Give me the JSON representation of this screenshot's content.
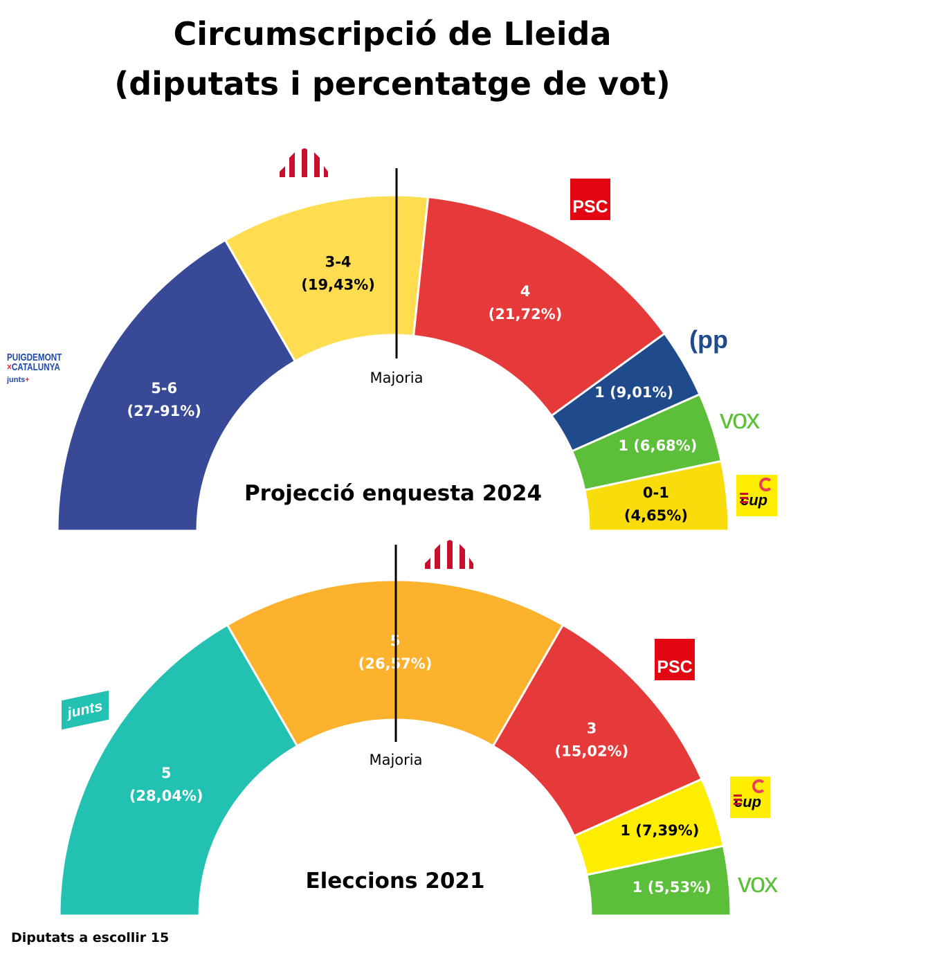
{
  "title_line1": "Circumscripció de Lleida",
  "title_line2": "(diputats i percentatge de vot)",
  "majority_label": "Majoria",
  "footer": "Diputats a escollir 15",
  "chart_data": [
    {
      "type": "hemicycle",
      "title": "Projecció enquesta 2024",
      "total_seats": 15,
      "segments": [
        {
          "party": "Junts",
          "logo_text": "PUIGDEMONT × CATALUNYA junts+",
          "seats": "5-6",
          "arc_seats": 5,
          "percent": "(27-91%)",
          "color": "#384A97",
          "text_color": "#ffffff"
        },
        {
          "party": "ERC",
          "logo_text": "",
          "seats": "3-4",
          "arc_seats": 3,
          "percent": "(19,43%)",
          "color": "#FFDC50",
          "text_color": "#000000"
        },
        {
          "party": "PSC",
          "logo_text": "PSC",
          "seats": "4",
          "arc_seats": 4,
          "percent": "(21,72%)",
          "color": "#E63A3A",
          "text_color": "#ffffff"
        },
        {
          "party": "PP",
          "logo_text": "pp",
          "seats": "1",
          "arc_seats": 1,
          "percent": "(9,01%)",
          "color": "#1F4A8C",
          "text_color": "#ffffff"
        },
        {
          "party": "VOX",
          "logo_text": "VOX",
          "seats": "1",
          "arc_seats": 1,
          "percent": "(6,68%)",
          "color": "#5BBF3A",
          "text_color": "#ffffff"
        },
        {
          "party": "CUP",
          "logo_text": "cup",
          "seats": "0-1",
          "arc_seats": 1,
          "percent": "(4,65%)",
          "color": "#F9DC0B",
          "text_color": "#000000"
        }
      ]
    },
    {
      "type": "hemicycle",
      "title": "Eleccions 2021",
      "total_seats": 15,
      "segments": [
        {
          "party": "Junts",
          "logo_text": "junts",
          "seats": "5",
          "arc_seats": 5,
          "percent": "(28,04%)",
          "color": "#22C1B1",
          "text_color": "#ffffff"
        },
        {
          "party": "ERC",
          "logo_text": "",
          "seats": "5",
          "arc_seats": 5,
          "percent": "(26,57%)",
          "color": "#FDB22E",
          "text_color": "#ffffff"
        },
        {
          "party": "PSC",
          "logo_text": "PSC",
          "seats": "3",
          "arc_seats": 3,
          "percent": "(15,02%)",
          "color": "#E63A3A",
          "text_color": "#ffffff"
        },
        {
          "party": "CUP",
          "logo_text": "cup",
          "seats": "1",
          "arc_seats": 1,
          "percent": "(7,39%)",
          "color": "#FEED01",
          "text_color": "#000000"
        },
        {
          "party": "VOX",
          "logo_text": "VOX",
          "seats": "1",
          "arc_seats": 1,
          "percent": "(5,53%)",
          "color": "#5BBF3A",
          "text_color": "#ffffff"
        }
      ]
    }
  ]
}
